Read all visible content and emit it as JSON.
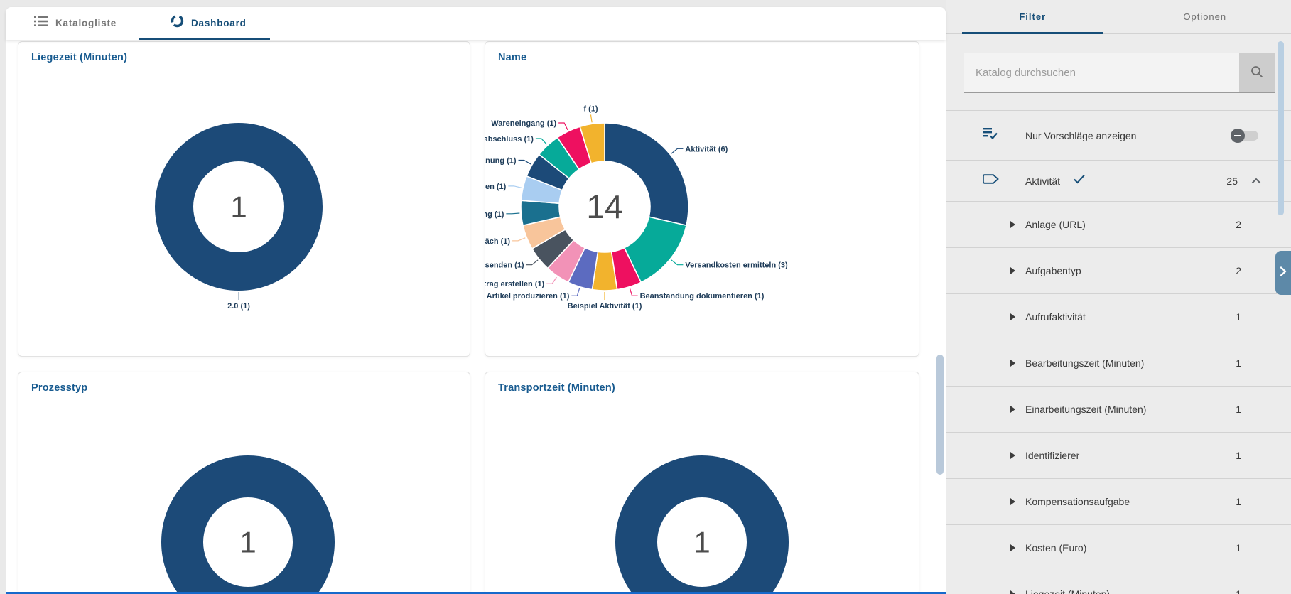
{
  "header": {
    "tabs": [
      {
        "label": "Katalogliste"
      },
      {
        "label": "Dashboard"
      }
    ]
  },
  "sidebar": {
    "tabs": [
      {
        "label": "Filter"
      },
      {
        "label": "Optionen"
      }
    ],
    "search_placeholder": "Katalog durchsuchen",
    "toggle_label": "Nur Vorschläge anzeigen",
    "group": {
      "label": "Aktivität",
      "count": "25"
    },
    "items": [
      {
        "label": "Anlage (URL)",
        "count": "2"
      },
      {
        "label": "Aufgabentyp",
        "count": "2"
      },
      {
        "label": "Aufrufaktivität",
        "count": "1"
      },
      {
        "label": "Bearbeitungszeit (Minuten)",
        "count": "1"
      },
      {
        "label": "Einarbeitungszeit (Minuten)",
        "count": "1"
      },
      {
        "label": "Identifizierer",
        "count": "1"
      },
      {
        "label": "Kompensationsaufgabe",
        "count": "1"
      },
      {
        "label": "Kosten (Euro)",
        "count": "1"
      },
      {
        "label": "Liegezeit (Minuten)",
        "count": "1"
      }
    ]
  },
  "colors": {
    "accent_blue": "#164e78",
    "title_blue": "#185b90",
    "navy": "#1c4a78",
    "teal": "#06aa99",
    "crimson": "#ee1060",
    "amber": "#f2b32d",
    "indigo": "#5c6bc0",
    "pink": "#f292b7",
    "slate": "#49535f",
    "peach": "#f8c59b",
    "steelteal": "#1a708f",
    "lightblue": "#a9cdf1"
  },
  "chart_data": [
    {
      "type": "donut",
      "title": "Liegezeit (Minuten)",
      "center_total": "1",
      "segments": [
        {
          "label": "2.0",
          "value": 1,
          "color": "#1c4a78"
        }
      ]
    },
    {
      "type": "donut",
      "title": "Name",
      "center_total": "14",
      "segments": [
        {
          "label": "Aktivität",
          "value": 6,
          "color": "#1c4a78"
        },
        {
          "label": "Versandkosten ermitteln",
          "value": 3,
          "color": "#06aa99"
        },
        {
          "label": "Beanstandung dokumentieren",
          "value": 1,
          "color": "#ee1060"
        },
        {
          "label": "Beispiel Aktivität",
          "value": 1,
          "color": "#f2b32d"
        },
        {
          "label": "Bestellte Artikel produzieren",
          "value": 1,
          "color": "#5c6bc0"
        },
        {
          "label": "Lieferantenvertrag erstellen",
          "value": 1,
          "color": "#f292b7"
        },
        {
          "label": "Lieferantenvertrag versenden",
          "value": 1,
          "color": "#49535f"
        },
        {
          "label": "Mitarbeiterjahresgespräch",
          "value": 1,
          "color": "#f8c59b"
        },
        {
          "label": "Personalplanung",
          "value": 1,
          "color": "#1a708f"
        },
        {
          "label": "Rechnung erstellen",
          "value": 1,
          "color": "#a9cdf1"
        },
        {
          "label": "Unternehmensplanung",
          "value": 1,
          "color": "#1c4a78"
        },
        {
          "label": "Vertragsabschluss",
          "value": 1,
          "color": "#06aa99"
        },
        {
          "label": "Wareneingang",
          "value": 1,
          "color": "#ee1060"
        },
        {
          "label": "f",
          "value": 1,
          "color": "#f2b32d"
        }
      ]
    },
    {
      "type": "donut",
      "title": "Prozesstyp",
      "center_total": "1",
      "segments": [
        {
          "label": null,
          "value": 1,
          "color": "#1c4a78"
        }
      ]
    },
    {
      "type": "donut",
      "title": "Transportzeit (Minuten)",
      "center_total": "1",
      "segments": [
        {
          "label": null,
          "value": 1,
          "color": "#1c4a78"
        }
      ]
    }
  ]
}
